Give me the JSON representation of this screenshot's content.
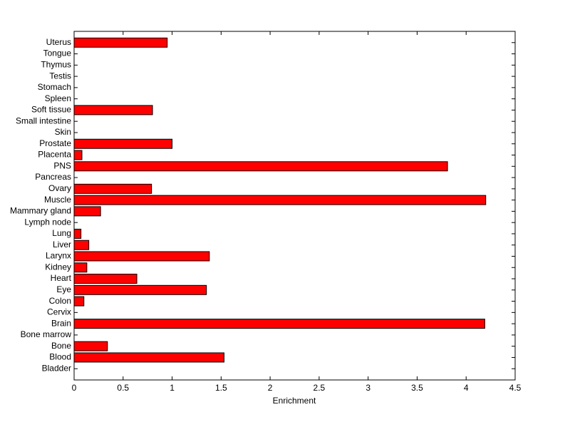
{
  "chart_data": {
    "type": "barh",
    "categories": [
      "Bladder",
      "Blood",
      "Bone",
      "Bone marrow",
      "Brain",
      "Cervix",
      "Colon",
      "Eye",
      "Heart",
      "Kidney",
      "Larynx",
      "Liver",
      "Lung",
      "Lymph node",
      "Mammary gland",
      "Muscle",
      "Ovary",
      "Pancreas",
      "PNS",
      "Placenta",
      "Prostate",
      "Skin",
      "Small intestine",
      "Soft tissue",
      "Spleen",
      "Stomach",
      "Testis",
      "Thymus",
      "Tongue",
      "Uterus"
    ],
    "values": [
      0,
      1.53,
      0.34,
      0,
      4.19,
      0,
      0.1,
      1.35,
      0.64,
      0.13,
      1.38,
      0.15,
      0.07,
      0,
      0.27,
      4.2,
      0.79,
      0,
      3.81,
      0.08,
      1.0,
      0,
      0,
      0.8,
      0,
      0,
      0,
      0,
      0,
      0.95
    ],
    "color": "#ff0000",
    "xlabel": "Enrichment",
    "xlim": [
      0,
      4.5
    ],
    "xticks": [
      0,
      0.5,
      1,
      1.5,
      2,
      2.5,
      3,
      3.5,
      4,
      4.5
    ]
  }
}
